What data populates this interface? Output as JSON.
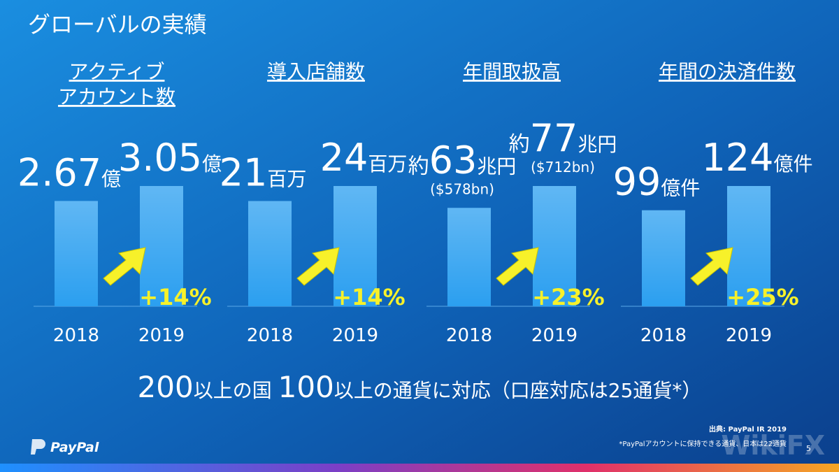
{
  "title": "グローバルの実績",
  "chart_data": [
    {
      "type": "bar",
      "title": [
        "アクティブ",
        "アカウント数"
      ],
      "categories": [
        "2018",
        "2019"
      ],
      "values": [
        2.67,
        3.05
      ],
      "unit": "億",
      "change": "+14%",
      "color": "#2b9ff0"
    },
    {
      "type": "bar",
      "title": [
        "導入店舗数"
      ],
      "categories": [
        "2018",
        "2019"
      ],
      "values": [
        21,
        24
      ],
      "unit": "百万",
      "change": "+14%",
      "color": "#2b9ff0"
    },
    {
      "type": "bar",
      "title": [
        "年間取扱高"
      ],
      "categories": [
        "2018",
        "2019"
      ],
      "values": [
        63,
        77
      ],
      "prefix": "約",
      "unit": "兆円",
      "sublabels": [
        "($578bn)",
        "($712bn)"
      ],
      "change": "+23%",
      "color": "#2b9ff0"
    },
    {
      "type": "bar",
      "title": [
        "年間の決済件数"
      ],
      "categories": [
        "2018",
        "2019"
      ],
      "values": [
        99,
        124
      ],
      "unit": "億件",
      "change": "+25%",
      "color": "#2b9ff0"
    }
  ],
  "footer": [
    "200",
    "以上の国 ",
    "100",
    "以上の通貨に対応（口座対応は25通貨*）"
  ],
  "source": "出典: PayPal IR 2019",
  "note": "*PayPalアカウントに保持できる通貨、日本は22通貨",
  "page": "5",
  "logo": "PayPal",
  "watermark": "WikiFX"
}
